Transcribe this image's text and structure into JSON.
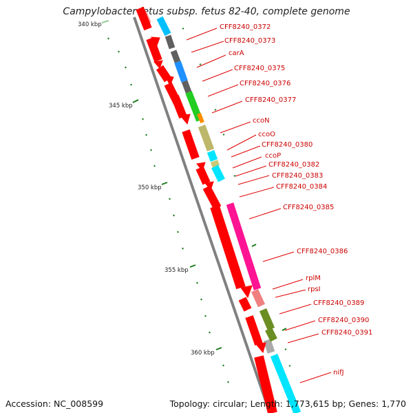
{
  "title": "Campylobacter fetus subsp. fetus 82-40, complete genome",
  "footer": {
    "accession": "Accession: NC_008599",
    "summary": "Topology: circular; Length: 1,773,615 bp; Genes: 1,770"
  },
  "scale_labels": [
    "340 kbp",
    "345 kbp",
    "350 kbp",
    "355 kbp",
    "360 kbp"
  ],
  "genes": [
    "CFF8240_0372",
    "CFF8240_0373",
    "carA",
    "CFF8240_0375",
    "CFF8240_0376",
    "CFF8240_0377",
    "ccoN",
    "ccoO",
    "CFF8240_0380",
    "ccoP",
    "CFF8240_0382",
    "CFF8240_0383",
    "CFF8240_0384",
    "CFF8240_0385",
    "CFF8240_0386",
    "rplM",
    "rpsI",
    "CFF8240_0389",
    "CFF8240_0390",
    "CFF8240_0391",
    "nifJ"
  ],
  "colors": {
    "backbone": "#808080",
    "cds": "#ff0000",
    "label": "#cc0000",
    "tick": "#1a7a1a"
  }
}
